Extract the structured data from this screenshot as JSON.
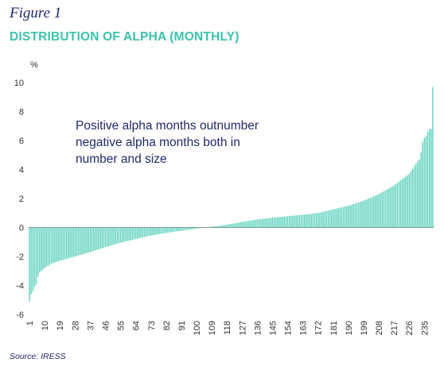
{
  "figure_label": "Figure 1",
  "title": "DISTRIBUTION OF ALPHA (MONTHLY)",
  "source": "Source: IRESS",
  "colors": {
    "bar": "#62d3c0",
    "title": "#3cc2ad",
    "text": "#1f2a6b"
  },
  "chart_data": {
    "type": "bar",
    "title": "DISTRIBUTION OF ALPHA (MONTHLY)",
    "ylabel": "%",
    "xlabel": "",
    "ylim": [
      -6,
      10
    ],
    "yticks": [
      -6,
      -4,
      -2,
      0,
      2,
      4,
      6,
      8,
      10
    ],
    "x_range": [
      1,
      240
    ],
    "xticks": [
      1,
      10,
      19,
      28,
      37,
      46,
      55,
      64,
      73,
      82,
      91,
      100,
      109,
      118,
      127,
      136,
      145,
      154,
      163,
      172,
      181,
      190,
      199,
      208,
      217,
      226,
      235
    ],
    "n_bars": 240,
    "sorted": "ascending",
    "anchor_points": [
      {
        "x": 1,
        "y": -5.1
      },
      {
        "x": 2,
        "y": -4.6
      },
      {
        "x": 3,
        "y": -4.4
      },
      {
        "x": 4,
        "y": -4.1
      },
      {
        "x": 5,
        "y": -3.9
      },
      {
        "x": 6,
        "y": -3.4
      },
      {
        "x": 7,
        "y": -3.1
      },
      {
        "x": 8,
        "y": -3.0
      },
      {
        "x": 10,
        "y": -2.8
      },
      {
        "x": 14,
        "y": -2.5
      },
      {
        "x": 19,
        "y": -2.3
      },
      {
        "x": 28,
        "y": -2.0
      },
      {
        "x": 37,
        "y": -1.7
      },
      {
        "x": 46,
        "y": -1.35
      },
      {
        "x": 55,
        "y": -1.05
      },
      {
        "x": 64,
        "y": -0.8
      },
      {
        "x": 73,
        "y": -0.55
      },
      {
        "x": 82,
        "y": -0.38
      },
      {
        "x": 91,
        "y": -0.22
      },
      {
        "x": 100,
        "y": -0.08
      },
      {
        "x": 104,
        "y": 0.0
      },
      {
        "x": 109,
        "y": 0.05
      },
      {
        "x": 118,
        "y": 0.2
      },
      {
        "x": 127,
        "y": 0.38
      },
      {
        "x": 136,
        "y": 0.55
      },
      {
        "x": 145,
        "y": 0.68
      },
      {
        "x": 154,
        "y": 0.78
      },
      {
        "x": 163,
        "y": 0.88
      },
      {
        "x": 172,
        "y": 1.0
      },
      {
        "x": 181,
        "y": 1.25
      },
      {
        "x": 190,
        "y": 1.5
      },
      {
        "x": 199,
        "y": 1.85
      },
      {
        "x": 208,
        "y": 2.3
      },
      {
        "x": 217,
        "y": 2.9
      },
      {
        "x": 226,
        "y": 3.7
      },
      {
        "x": 230,
        "y": 4.4
      },
      {
        "x": 232,
        "y": 4.7
      },
      {
        "x": 233,
        "y": 5.2
      },
      {
        "x": 234,
        "y": 5.9
      },
      {
        "x": 235,
        "y": 6.2
      },
      {
        "x": 236,
        "y": 6.3
      },
      {
        "x": 237,
        "y": 6.6
      },
      {
        "x": 238,
        "y": 6.8
      },
      {
        "x": 239,
        "y": 6.8
      },
      {
        "x": 240,
        "y": 9.7
      }
    ],
    "annotation": {
      "lines": [
        "Positive alpha months outnumber",
        "negative alpha months both in",
        "number and size"
      ]
    }
  }
}
